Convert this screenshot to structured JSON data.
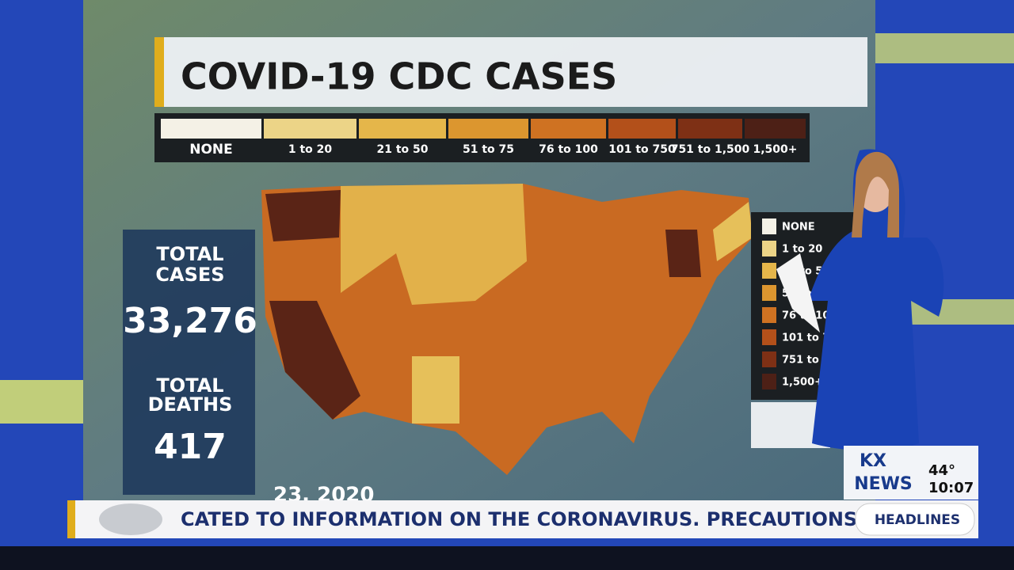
{
  "title": "COVID-19  CDC CASES",
  "legend": [
    {
      "label": "NONE",
      "color": "#f4f1e6"
    },
    {
      "label": "1 to 20",
      "color": "#ecd487"
    },
    {
      "label": "21 to 50",
      "color": "#e5b64a"
    },
    {
      "label": "51 to 75",
      "color": "#dc962f"
    },
    {
      "label": "76 to 100",
      "color": "#cf7222"
    },
    {
      "label": "101 to 750",
      "color": "#b3501a"
    },
    {
      "label": "751 to 1,500",
      "color": "#7e3015"
    },
    {
      "label": "1,500+",
      "color": "#4d2016"
    }
  ],
  "stats": {
    "cases_label": [
      "TOTAL",
      "CASES"
    ],
    "cases": "33,276",
    "deaths_label": [
      "TOTAL",
      "DEATHS"
    ],
    "deaths": "417",
    "date": "23, 2020"
  },
  "ticker": {
    "text": "CATED TO INFORMATION ON THE CORONAVIRUS. PRECAUTIONS TO",
    "section": "HEADLINES"
  },
  "station": {
    "logo_top": "KX",
    "logo_bottom": "NEWS",
    "temperature": "44°",
    "time": "10:07"
  }
}
